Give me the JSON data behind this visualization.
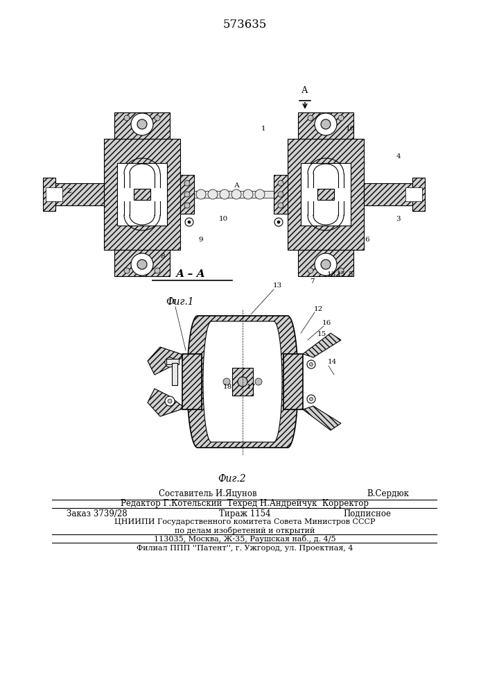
{
  "patent_number": "573635",
  "fig1_label": "Фиг.1",
  "fig2_label": "Фиг.2",
  "section_label": "А – А",
  "arrow_label": "А",
  "footer_line1": "Составитель И.Яцунов",
  "footer_line1r": "В.Сердюк",
  "footer_line2": "Редактор Г.Котельский  Техред Н.Андрейчук  Корректор",
  "footer_line3a": "Заказ 3739/28",
  "footer_line3b": "Тираж 1154",
  "footer_line3c": "Подписное",
  "footer_line4": "ЦНИИПИ Государственного комитета Совета Министров СССР",
  "footer_line5": "по делам изобретений и открытий",
  "footer_line6": "113035, Москва, Ж-35, Раушская наб., д. 4/5",
  "footer_line7": "Филиал ППП ''Патент'', г. Ужгород, ул. Проектная, 4",
  "bg_color": "#ffffff"
}
